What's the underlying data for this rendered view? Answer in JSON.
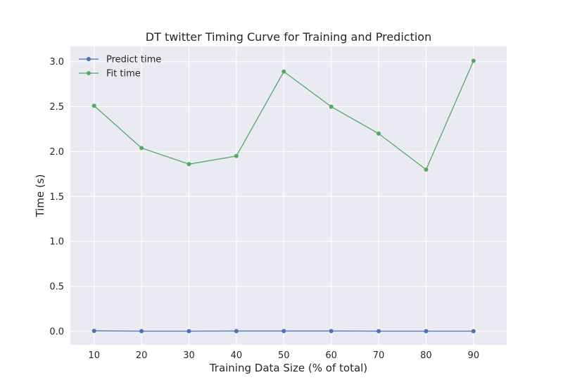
{
  "chart_data": {
    "type": "line",
    "title": "DT twitter Timing Curve for Training and Prediction",
    "xlabel": "Training Data Size (% of total)",
    "ylabel": "Time (s)",
    "x": [
      10,
      20,
      30,
      40,
      50,
      60,
      70,
      80,
      90
    ],
    "xticks": [
      "10",
      "20",
      "30",
      "40",
      "50",
      "60",
      "70",
      "80",
      "90"
    ],
    "yticks": [
      "0.0",
      "0.5",
      "1.0",
      "1.5",
      "2.0",
      "2.5",
      "3.0"
    ],
    "xlim": [
      5,
      97
    ],
    "ylim": [
      -0.15,
      3.17
    ],
    "grid": true,
    "legend_position": "top-left",
    "series": [
      {
        "name": "Predict time",
        "color": "#4c72b0",
        "values": [
          0.005,
          0.002,
          0.002,
          0.003,
          0.003,
          0.003,
          0.002,
          0.002,
          0.002
        ]
      },
      {
        "name": "Fit time",
        "color": "#55a868",
        "values": [
          2.51,
          2.04,
          1.86,
          1.95,
          2.89,
          2.5,
          2.2,
          1.8,
          3.01
        ]
      }
    ]
  }
}
